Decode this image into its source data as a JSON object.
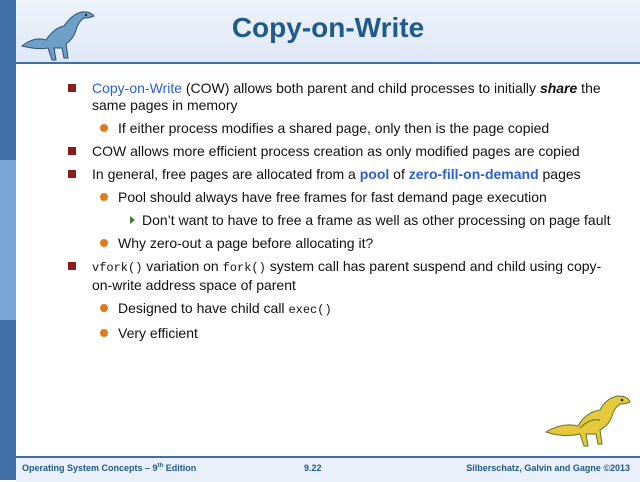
{
  "slide": {
    "title": "Copy-on-Write",
    "bullets": {
      "b1": {
        "term": "Copy-on-Write",
        "rest": " (COW) allows both parent and child processes to initially",
        "share": "share",
        "tail": " the same pages in memory"
      },
      "b1s1": "If either process modifies a shared page, only then is the page copied",
      "b2": "COW allows more efficient process creation as only modified pages are copied",
      "b3": {
        "pre": "In general, free pages are allocated from a ",
        "pool": "pool",
        "of": " of ",
        "zero": "zero-fill-on-demand",
        "tail": " pages"
      },
      "b3s1": "Pool should always have free frames for fast demand page execution",
      "b3s1a": "Don’t want to have to free a frame as well as other processing on page fault",
      "b3s2": "Why zero-out a page before allocating it?",
      "b4": {
        "vfork": "vfork()",
        "mid": " variation on ",
        "fork": "fork()",
        "tail": " system call has parent suspend and child using copy-on-write address space of parent"
      },
      "b4s1": {
        "pre": "Designed to have child call ",
        "exec": "exec()"
      },
      "b4s2": "Very efficient"
    }
  },
  "footer": {
    "left": "Operating System Concepts – 9",
    "left_sup": "th",
    "left_tail": " Edition",
    "center": "9.22",
    "right": "Silberschatz, Galvin and Gagne ©2013"
  },
  "colors": {
    "accent": "#1f5a8c",
    "bullet_square": "#8a1c1c",
    "bullet_dot": "#e07a1e",
    "link_blue": "#2b5fd9"
  },
  "icons": {
    "top_left": "dinosaur-icon",
    "bottom_right": "dinosaur-icon"
  }
}
